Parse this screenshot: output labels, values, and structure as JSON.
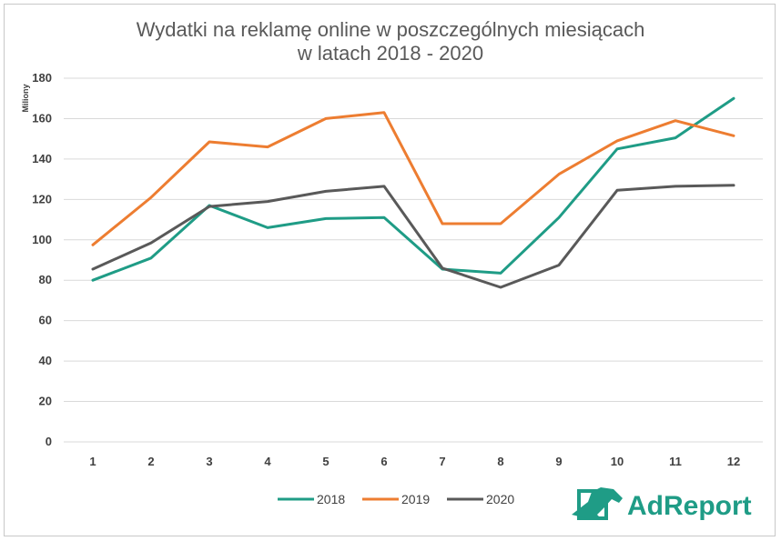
{
  "chart_data": {
    "type": "line",
    "title_line1": "Wydatki na reklamę online w poszczególnych miesiącach",
    "title_line2": "w latach 2018 - 2020",
    "ylabel": "Miliony",
    "xlabel": "",
    "ylim": [
      0,
      180
    ],
    "yticks": [
      0,
      20,
      40,
      60,
      80,
      100,
      120,
      140,
      160,
      180
    ],
    "categories": [
      "1",
      "2",
      "3",
      "4",
      "5",
      "6",
      "7",
      "8",
      "9",
      "10",
      "11",
      "12"
    ],
    "grid": "horizontal",
    "legend_position": "bottom",
    "series": [
      {
        "name": "2018",
        "color": "#1f9c86",
        "values": [
          80,
          91,
          117,
          106,
          110.5,
          111,
          85.5,
          83.5,
          111,
          145,
          150.5,
          170
        ]
      },
      {
        "name": "2019",
        "color": "#ed7d31",
        "values": [
          97.5,
          121,
          148.5,
          146,
          160,
          163,
          108,
          108,
          132.5,
          149,
          159,
          151.5
        ]
      },
      {
        "name": "2020",
        "color": "#595959",
        "values": [
          85.5,
          98.5,
          116.5,
          119,
          124,
          126.5,
          86,
          76.5,
          87.5,
          124.5,
          126.5,
          127
        ]
      }
    ]
  },
  "logo": {
    "text": "AdReport",
    "icon": "horse-head-logo-icon",
    "color": "#1f9c86"
  }
}
